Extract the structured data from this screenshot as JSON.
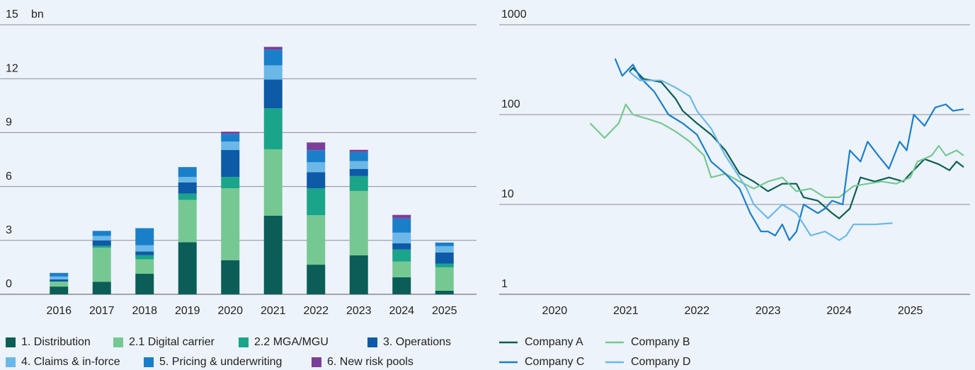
{
  "chart_data": [
    {
      "type": "bar",
      "stacked": true,
      "unit": "bn",
      "categories": [
        "2016",
        "2017",
        "2018",
        "2019",
        "2020",
        "2021",
        "2022",
        "2023",
        "2024",
        "2025"
      ],
      "ylim": [
        0,
        15
      ],
      "yticks": [
        0,
        3,
        6,
        9,
        12,
        15
      ],
      "grid": true,
      "legend": "bottom",
      "series": [
        {
          "name": "1. Distribution",
          "color": "#0b5e57",
          "values": [
            0.43,
            0.7,
            1.15,
            2.9,
            1.9,
            4.37,
            1.65,
            2.17,
            0.95,
            0.2
          ]
        },
        {
          "name": "2.1 Digital carrier",
          "color": "#76c893",
          "values": [
            0.28,
            1.9,
            0.8,
            2.35,
            4.0,
            3.7,
            2.75,
            3.58,
            0.87,
            1.3
          ]
        },
        {
          "name": "2.2 MGA/MGU",
          "color": "#1aa58a",
          "values": [
            0,
            0.1,
            0.23,
            0.35,
            0.63,
            2.28,
            1.5,
            0.83,
            0.67,
            0.2
          ]
        },
        {
          "name": "3. Operations",
          "color": "#0d5aa7",
          "values": [
            0.12,
            0.3,
            0.2,
            0.63,
            1.5,
            1.6,
            0.9,
            0.4,
            0.35,
            0.63
          ]
        },
        {
          "name": "4. Claims & in-force",
          "color": "#6bb8e8",
          "values": [
            0.16,
            0.25,
            0.35,
            0.3,
            0.47,
            0.79,
            0.55,
            0.43,
            0.59,
            0.35
          ]
        },
        {
          "name": "5. Pricing & underwriting",
          "color": "#1a7fc9",
          "values": [
            0.2,
            0.28,
            0.95,
            0.55,
            0.43,
            0.87,
            0.67,
            0.51,
            0.79,
            0.2
          ]
        },
        {
          "name": "6. New risk pools",
          "color": "#7b3f98",
          "values": [
            0,
            0,
            0,
            0,
            0.12,
            0.16,
            0.43,
            0.12,
            0.2,
            0
          ]
        }
      ]
    },
    {
      "type": "line",
      "yscale": "log",
      "xlim": [
        2019.22,
        2025.84
      ],
      "xticks": [
        2020,
        2021,
        2022,
        2023,
        2024,
        2025
      ],
      "ylim": [
        1,
        1000
      ],
      "yticks": [
        1,
        10,
        100,
        1000
      ],
      "grid": true,
      "legend": "bottom",
      "series": [
        {
          "name": "Company A",
          "color": "#0b5e57",
          "x": [
            2021.05,
            2021.1,
            2021.25,
            2021.5,
            2021.7,
            2021.8,
            2022.0,
            2022.2,
            2022.4,
            2022.6,
            2022.8,
            2023.0,
            2023.2,
            2023.4,
            2023.5,
            2023.7,
            2023.9,
            2024.0,
            2024.15,
            2024.3,
            2024.5,
            2024.7,
            2024.9,
            2025.0,
            2025.2,
            2025.4,
            2025.55,
            2025.65,
            2025.75
          ],
          "values": [
            300,
            330,
            250,
            230,
            150,
            110,
            80,
            60,
            40,
            22,
            18,
            14,
            17,
            17,
            12,
            11,
            8,
            7,
            9,
            20,
            18,
            20,
            18,
            22,
            32,
            28,
            24,
            30,
            26
          ]
        },
        {
          "name": "Company B",
          "color": "#76c893",
          "x": [
            2020.5,
            2020.7,
            2020.9,
            2021.0,
            2021.1,
            2021.3,
            2021.5,
            2021.7,
            2021.9,
            2022.1,
            2022.2,
            2022.4,
            2022.6,
            2022.8,
            2023.0,
            2023.2,
            2023.4,
            2023.6,
            2023.8,
            2024.0,
            2024.2,
            2024.4,
            2024.6,
            2024.8,
            2025.0,
            2025.1,
            2025.3,
            2025.4,
            2025.5,
            2025.65,
            2025.75
          ],
          "values": [
            80,
            55,
            80,
            130,
            100,
            90,
            80,
            65,
            50,
            35,
            20,
            22,
            18,
            15,
            18,
            20,
            14,
            15,
            12,
            12,
            16,
            17,
            18,
            17,
            20,
            30,
            35,
            45,
            35,
            40,
            35
          ]
        },
        {
          "name": "Company C",
          "color": "#1a7fc9",
          "x": [
            2020.85,
            2020.95,
            2021.1,
            2021.2,
            2021.4,
            2021.6,
            2021.8,
            2022.0,
            2022.2,
            2022.4,
            2022.6,
            2022.75,
            2022.9,
            2023.0,
            2023.1,
            2023.2,
            2023.3,
            2023.4,
            2023.5,
            2023.7,
            2023.8,
            2023.9,
            2024.05,
            2024.15,
            2024.3,
            2024.4,
            2024.55,
            2024.7,
            2024.85,
            2024.95,
            2025.05,
            2025.2,
            2025.35,
            2025.5,
            2025.6,
            2025.75
          ],
          "values": [
            420,
            270,
            360,
            260,
            180,
            100,
            80,
            60,
            30,
            22,
            15,
            8,
            5,
            5,
            4.5,
            6,
            4,
            5,
            10,
            8,
            9,
            11,
            10,
            40,
            30,
            50,
            35,
            25,
            50,
            40,
            100,
            75,
            120,
            130,
            110,
            115
          ]
        },
        {
          "name": "Company D",
          "color": "#6bb8e8",
          "x": [
            2021.05,
            2021.2,
            2021.5,
            2021.7,
            2021.9,
            2022.0,
            2022.2,
            2022.4,
            2022.6,
            2022.7,
            2022.8,
            2023.0,
            2023.2,
            2023.4,
            2023.6,
            2023.8,
            2024.0,
            2024.1,
            2024.2,
            2024.5,
            2024.75
          ],
          "values": [
            300,
            240,
            240,
            200,
            160,
            110,
            70,
            35,
            20,
            15,
            10,
            7,
            10,
            8,
            4.5,
            5,
            4,
            4.5,
            6,
            6,
            6.2
          ]
        }
      ]
    }
  ]
}
